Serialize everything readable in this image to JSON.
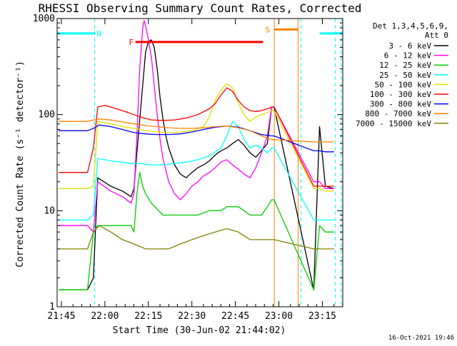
{
  "chart_data": {
    "type": "line",
    "title": "RHESSI Observing Summary Count Rates, Corrected",
    "xlabel": "Start Time (30-Jun-02 21:44:02)",
    "ylabel": "Corrected Count Rate (s⁻¹ detector⁻¹)",
    "yscale": "log",
    "ylim": [
      1,
      1000
    ],
    "xlim_minutes": [
      -0.5,
      98
    ],
    "x_ticks": [
      {
        "t": 0.97,
        "label": "21:45"
      },
      {
        "t": 15.97,
        "label": "22:00"
      },
      {
        "t": 30.97,
        "label": "22:15"
      },
      {
        "t": 45.97,
        "label": "22:30"
      },
      {
        "t": 60.97,
        "label": "22:45"
      },
      {
        "t": 75.97,
        "label": "23:00"
      },
      {
        "t": 90.97,
        "label": "23:15"
      }
    ],
    "y_ticks": [
      {
        "v": 1,
        "label": "1"
      },
      {
        "v": 10,
        "label": "10"
      },
      {
        "v": 100,
        "label": "100"
      },
      {
        "v": 1000,
        "label": "1000"
      }
    ],
    "legend": {
      "header_lines": [
        "Det 1,3,4,5,6,9,",
        "Att 0"
      ],
      "placement": "right"
    },
    "detector_note": "Det 1,3,4,5,6,9, Att 0",
    "footer_date": "16-Oct-2021 19:46",
    "series": [
      {
        "name": "3 - 6 keV",
        "color": "#000000",
        "points": [
          [
            0,
            1.5
          ],
          [
            10,
            1.5
          ],
          [
            12,
            2
          ],
          [
            13.5,
            22
          ],
          [
            18,
            18
          ],
          [
            22,
            16
          ],
          [
            25,
            14
          ],
          [
            26,
            17
          ],
          [
            27,
            40
          ],
          [
            29,
            200
          ],
          [
            30,
            450
          ],
          [
            31,
            580
          ],
          [
            32,
            600
          ],
          [
            33,
            500
          ],
          [
            34,
            300
          ],
          [
            35,
            150
          ],
          [
            36,
            90
          ],
          [
            37,
            60
          ],
          [
            38,
            45
          ],
          [
            40,
            30
          ],
          [
            42,
            24
          ],
          [
            44,
            22
          ],
          [
            46,
            25
          ],
          [
            48,
            28
          ],
          [
            50,
            30
          ],
          [
            52,
            33
          ],
          [
            54,
            38
          ],
          [
            56,
            42
          ],
          [
            58,
            45
          ],
          [
            60,
            50
          ],
          [
            62,
            55
          ],
          [
            64,
            48
          ],
          [
            66,
            40
          ],
          [
            68,
            36
          ],
          [
            70,
            42
          ],
          [
            72,
            50
          ],
          [
            73.5,
            120
          ],
          [
            74.3,
            120
          ],
          [
            88,
            1.5
          ],
          [
            90,
            75
          ],
          [
            92,
            18
          ],
          [
            95,
            17
          ]
        ]
      },
      {
        "name": "6 - 12 keV",
        "color": "#ff00ff",
        "points": [
          [
            0,
            7
          ],
          [
            10,
            7
          ],
          [
            12,
            6
          ],
          [
            13.5,
            20
          ],
          [
            18,
            16
          ],
          [
            22,
            14
          ],
          [
            25,
            12
          ],
          [
            26,
            15
          ],
          [
            27,
            60
          ],
          [
            28,
            300
          ],
          [
            29,
            800
          ],
          [
            29.5,
            950
          ],
          [
            30,
            850
          ],
          [
            31,
            600
          ],
          [
            32,
            400
          ],
          [
            33,
            200
          ],
          [
            34,
            100
          ],
          [
            35,
            55
          ],
          [
            36,
            35
          ],
          [
            38,
            20
          ],
          [
            40,
            15
          ],
          [
            42,
            13
          ],
          [
            44,
            15
          ],
          [
            46,
            18
          ],
          [
            48,
            20
          ],
          [
            50,
            23
          ],
          [
            52,
            25
          ],
          [
            54,
            28
          ],
          [
            56,
            32
          ],
          [
            58,
            34
          ],
          [
            60,
            30
          ],
          [
            62,
            27
          ],
          [
            64,
            24
          ],
          [
            66,
            22
          ],
          [
            68,
            28
          ],
          [
            70,
            40
          ],
          [
            72,
            60
          ],
          [
            73.5,
            120
          ],
          [
            74.3,
            120
          ],
          [
            88,
            20
          ],
          [
            90,
            20
          ],
          [
            92,
            17
          ],
          [
            95,
            17
          ]
        ]
      },
      {
        "name": "12 - 25 keV",
        "color": "#00cc00",
        "points": [
          [
            0,
            1.5
          ],
          [
            10,
            1.5
          ],
          [
            12,
            6
          ],
          [
            13.5,
            7
          ],
          [
            20,
            7
          ],
          [
            25,
            7
          ],
          [
            26,
            6
          ],
          [
            27,
            15
          ],
          [
            28,
            25
          ],
          [
            29,
            18
          ],
          [
            30,
            15
          ],
          [
            32,
            12
          ],
          [
            36,
            9
          ],
          [
            40,
            9
          ],
          [
            44,
            9
          ],
          [
            48,
            9
          ],
          [
            52,
            10
          ],
          [
            56,
            10
          ],
          [
            58,
            11
          ],
          [
            60,
            11
          ],
          [
            62,
            11
          ],
          [
            64,
            10
          ],
          [
            66,
            9
          ],
          [
            68,
            9
          ],
          [
            70,
            9
          ],
          [
            72,
            11
          ],
          [
            73.5,
            13
          ],
          [
            74.3,
            13
          ],
          [
            88,
            1.5
          ],
          [
            90,
            7
          ],
          [
            92,
            6
          ],
          [
            95,
            6
          ]
        ]
      },
      {
        "name": "25 - 50 keV",
        "color": "#00ffff",
        "points": [
          [
            0,
            8
          ],
          [
            10,
            8
          ],
          [
            12,
            9
          ],
          [
            13.5,
            35
          ],
          [
            18,
            33
          ],
          [
            22,
            32
          ],
          [
            25,
            31
          ],
          [
            28,
            31
          ],
          [
            32,
            30
          ],
          [
            36,
            30
          ],
          [
            40,
            31
          ],
          [
            44,
            32
          ],
          [
            48,
            34
          ],
          [
            52,
            37
          ],
          [
            56,
            45
          ],
          [
            58,
            60
          ],
          [
            60,
            85
          ],
          [
            62,
            75
          ],
          [
            64,
            55
          ],
          [
            66,
            45
          ],
          [
            68,
            48
          ],
          [
            70,
            45
          ],
          [
            72,
            40
          ],
          [
            73.5,
            45
          ],
          [
            74.3,
            45
          ],
          [
            88,
            8
          ],
          [
            90,
            8
          ],
          [
            92,
            8
          ],
          [
            95,
            8
          ]
        ]
      },
      {
        "name": "50 - 100 keV",
        "color": "#e0e000",
        "points": [
          [
            0,
            17
          ],
          [
            10,
            17
          ],
          [
            12,
            18
          ],
          [
            13.5,
            85
          ],
          [
            18,
            80
          ],
          [
            22,
            75
          ],
          [
            26,
            72
          ],
          [
            28,
            70
          ],
          [
            30,
            68
          ],
          [
            34,
            66
          ],
          [
            38,
            65
          ],
          [
            42,
            66
          ],
          [
            46,
            68
          ],
          [
            50,
            75
          ],
          [
            52,
            95
          ],
          [
            54,
            140
          ],
          [
            56,
            180
          ],
          [
            58,
            210
          ],
          [
            60,
            190
          ],
          [
            62,
            130
          ],
          [
            64,
            100
          ],
          [
            66,
            85
          ],
          [
            68,
            95
          ],
          [
            70,
            100
          ],
          [
            72,
            105
          ],
          [
            73.5,
            110
          ],
          [
            74.3,
            110
          ],
          [
            88,
            17
          ],
          [
            90,
            17
          ],
          [
            92,
            16
          ],
          [
            95,
            16
          ]
        ]
      },
      {
        "name": "100 - 300 keV",
        "color": "#ff0000",
        "points": [
          [
            0,
            25
          ],
          [
            10,
            25
          ],
          [
            12,
            45
          ],
          [
            13.5,
            120
          ],
          [
            16,
            125
          ],
          [
            20,
            115
          ],
          [
            24,
            105
          ],
          [
            28,
            95
          ],
          [
            32,
            88
          ],
          [
            36,
            87
          ],
          [
            40,
            88
          ],
          [
            44,
            92
          ],
          [
            48,
            100
          ],
          [
            52,
            115
          ],
          [
            54,
            130
          ],
          [
            56,
            160
          ],
          [
            58,
            190
          ],
          [
            60,
            175
          ],
          [
            62,
            140
          ],
          [
            64,
            120
          ],
          [
            66,
            110
          ],
          [
            68,
            108
          ],
          [
            70,
            110
          ],
          [
            72,
            115
          ],
          [
            73.5,
            120
          ],
          [
            74.3,
            120
          ],
          [
            88,
            18
          ],
          [
            90,
            18
          ],
          [
            92,
            18
          ],
          [
            95,
            18
          ]
        ]
      },
      {
        "name": "300 - 800 keV",
        "color": "#0000ff",
        "points": [
          [
            0,
            68
          ],
          [
            10,
            68
          ],
          [
            12,
            72
          ],
          [
            14,
            78
          ],
          [
            18,
            75
          ],
          [
            22,
            70
          ],
          [
            26,
            65
          ],
          [
            30,
            63
          ],
          [
            34,
            62
          ],
          [
            38,
            62
          ],
          [
            42,
            63
          ],
          [
            46,
            66
          ],
          [
            50,
            70
          ],
          [
            54,
            74
          ],
          [
            58,
            76
          ],
          [
            62,
            74
          ],
          [
            66,
            68
          ],
          [
            70,
            62
          ],
          [
            73.5,
            60
          ],
          [
            74.3,
            60
          ],
          [
            88,
            42
          ],
          [
            90,
            42
          ],
          [
            92,
            41
          ],
          [
            95,
            41
          ]
        ]
      },
      {
        "name": "800 - 7000 keV",
        "color": "#ff8000",
        "points": [
          [
            0,
            85
          ],
          [
            10,
            85
          ],
          [
            12,
            88
          ],
          [
            14,
            90
          ],
          [
            18,
            88
          ],
          [
            22,
            84
          ],
          [
            26,
            80
          ],
          [
            30,
            77
          ],
          [
            34,
            75
          ],
          [
            38,
            73
          ],
          [
            42,
            72
          ],
          [
            46,
            72
          ],
          [
            50,
            73
          ],
          [
            54,
            75
          ],
          [
            58,
            76
          ],
          [
            62,
            73
          ],
          [
            66,
            68
          ],
          [
            70,
            60
          ],
          [
            73.5,
            55
          ],
          [
            74.3,
            55
          ],
          [
            88,
            52
          ],
          [
            90,
            52
          ],
          [
            92,
            52
          ],
          [
            95,
            52
          ]
        ]
      },
      {
        "name": "7000 - 15000 keV",
        "color": "#808000",
        "points": [
          [
            0,
            4
          ],
          [
            10,
            4
          ],
          [
            12,
            6
          ],
          [
            14,
            7
          ],
          [
            18,
            6
          ],
          [
            22,
            5
          ],
          [
            26,
            4.5
          ],
          [
            30,
            4
          ],
          [
            34,
            4
          ],
          [
            38,
            4
          ],
          [
            42,
            4.5
          ],
          [
            46,
            5
          ],
          [
            50,
            5.5
          ],
          [
            54,
            6
          ],
          [
            58,
            6.5
          ],
          [
            62,
            6
          ],
          [
            66,
            5
          ],
          [
            70,
            5
          ],
          [
            73.5,
            5
          ],
          [
            74.3,
            5
          ],
          [
            88,
            4
          ],
          [
            90,
            4
          ],
          [
            92,
            4
          ],
          [
            95,
            4
          ]
        ]
      }
    ],
    "annotations": [
      {
        "label": "N",
        "t_start": -0.5,
        "t_end": 12.5,
        "color": "#00ffff",
        "level": 700,
        "kind": "bar"
      },
      {
        "label": "F",
        "t_start": 26.5,
        "t_end": 70.5,
        "color": "#ff0000",
        "level": 570,
        "kind": "bar"
      },
      {
        "label": "S",
        "t_start": 74.5,
        "t_end": 82.5,
        "color": "#ff8000",
        "level": 770,
        "kind": "bar"
      },
      {
        "label": "",
        "t_start": 90,
        "t_end": 98,
        "color": "#00ffff",
        "level": 700,
        "kind": "bar"
      }
    ],
    "vertical_lines": [
      {
        "t": 12.4,
        "color": "#00ffff",
        "style": "dashed"
      },
      {
        "t": 74.4,
        "color": "#ff8000",
        "style": "solid"
      },
      {
        "t": 82.6,
        "color": "#ff8000",
        "style": "solid"
      },
      {
        "t": 83.6,
        "color": "#00ffff",
        "style": "dashed"
      },
      {
        "t": 95.4,
        "color": "#00ffff",
        "style": "dashed"
      },
      {
        "t": 97.5,
        "color": "#00ffff",
        "style": "dashed"
      }
    ]
  }
}
